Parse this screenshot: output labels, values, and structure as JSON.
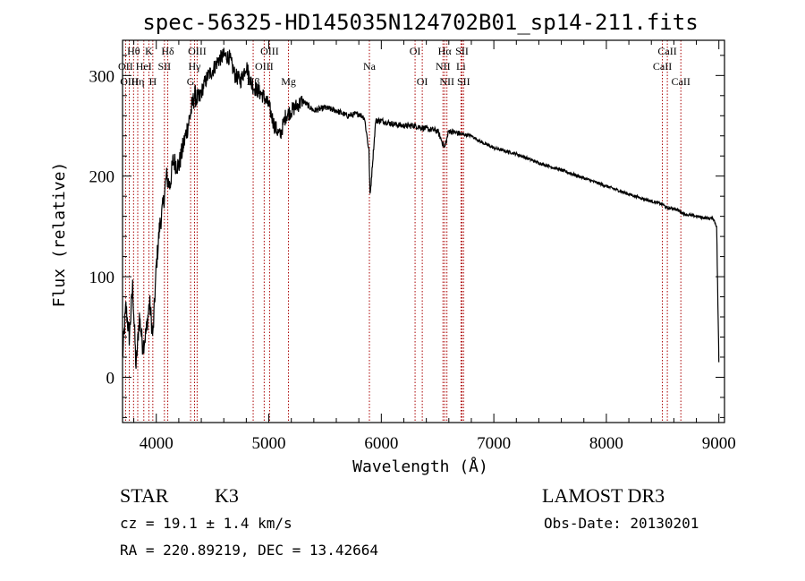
{
  "chart_data": {
    "type": "line",
    "title": "spec-56325-HD145035N124702B01_sp14-211.fits",
    "xlabel": "Wavelength (Å)",
    "ylabel": "Flux (relative)",
    "xlim": [
      3700,
      9050
    ],
    "ylim": [
      -45,
      335
    ],
    "xticks": [
      4000,
      5000,
      6000,
      7000,
      8000,
      9000
    ],
    "yticks": [
      0,
      100,
      200,
      300
    ],
    "series": [
      {
        "name": "spectrum",
        "color": "#000000",
        "x": [
          3700,
          3730,
          3760,
          3790,
          3820,
          3850,
          3880,
          3910,
          3940,
          3970,
          4000,
          4030,
          4060,
          4090,
          4120,
          4150,
          4200,
          4250,
          4300,
          4340,
          4380,
          4420,
          4460,
          4500,
          4550,
          4600,
          4650,
          4700,
          4750,
          4800,
          4850,
          4900,
          4950,
          5000,
          5050,
          5100,
          5150,
          5200,
          5300,
          5400,
          5500,
          5600,
          5700,
          5800,
          5850,
          5890,
          5900,
          5950,
          6000,
          6100,
          6200,
          6300,
          6400,
          6500,
          6563,
          6600,
          6700,
          6800,
          6900,
          7000,
          7200,
          7400,
          7600,
          7800,
          8000,
          8200,
          8400,
          8500,
          8542,
          8600,
          8700,
          8800,
          8900,
          8950,
          8980,
          9000
        ],
        "y": [
          20,
          70,
          40,
          90,
          10,
          60,
          30,
          45,
          75,
          40,
          110,
          150,
          170,
          200,
          190,
          215,
          210,
          235,
          260,
          280,
          275,
          290,
          300,
          305,
          315,
          320,
          318,
          300,
          295,
          310,
          290,
          285,
          280,
          270,
          250,
          240,
          260,
          265,
          275,
          265,
          268,
          265,
          260,
          262,
          258,
          225,
          180,
          255,
          255,
          252,
          250,
          250,
          247,
          245,
          228,
          245,
          242,
          240,
          233,
          228,
          222,
          213,
          206,
          198,
          190,
          182,
          175,
          172,
          168,
          168,
          162,
          160,
          158,
          158,
          150,
          15
        ]
      }
    ],
    "lines": [
      {
        "name": "Hθ",
        "wavelength": 3798,
        "row": 0
      },
      {
        "name": "OII",
        "wavelength": 3727,
        "row": 1
      },
      {
        "name": "OIII",
        "wavelength": 3760,
        "row": 2
      },
      {
        "name": "Hη",
        "wavelength": 3835,
        "row": 2
      },
      {
        "name": "HeI",
        "wavelength": 3889,
        "row": 1
      },
      {
        "name": "K",
        "wavelength": 3934,
        "row": 0
      },
      {
        "name": "SII",
        "wavelength": 4072,
        "row": 1
      },
      {
        "name": "H",
        "wavelength": 3969,
        "row": 2
      },
      {
        "name": "Hδ",
        "wavelength": 4102,
        "row": 0
      },
      {
        "name": "OIII",
        "wavelength": 4363,
        "row": 0
      },
      {
        "name": "Hγ",
        "wavelength": 4340,
        "row": 1
      },
      {
        "name": "G",
        "wavelength": 4305,
        "row": 2
      },
      {
        "name": "Hβ",
        "wavelength": 4861,
        "row": 2
      },
      {
        "name": "OIII",
        "wavelength": 5007,
        "row": 0
      },
      {
        "name": "OIII",
        "wavelength": 4959,
        "row": 1
      },
      {
        "name": "Mg",
        "wavelength": 5175,
        "row": 2
      },
      {
        "name": "Na",
        "wavelength": 5894,
        "row": 1
      },
      {
        "name": "OI",
        "wavelength": 6300,
        "row": 0
      },
      {
        "name": "OI",
        "wavelength": 6364,
        "row": 2
      },
      {
        "name": "Hα",
        "wavelength": 6563,
        "row": 0
      },
      {
        "name": "NII",
        "wavelength": 6548,
        "row": 1
      },
      {
        "name": "NII",
        "wavelength": 6583,
        "row": 2
      },
      {
        "name": "SII",
        "wavelength": 6717,
        "row": 0
      },
      {
        "name": "Li",
        "wavelength": 6708,
        "row": 1
      },
      {
        "name": "SII",
        "wavelength": 6731,
        "row": 2
      },
      {
        "name": "CaII",
        "wavelength": 8542,
        "row": 0
      },
      {
        "name": "CaII",
        "wavelength": 8498,
        "row": 1
      },
      {
        "name": "CaII",
        "wavelength": 8662,
        "row": 2
      }
    ],
    "line_color": "#aa0000"
  },
  "footer": {
    "object_class": "STAR",
    "subclass": "K3",
    "survey": "LAMOST DR3",
    "redshift": "cz = 19.1 ± 1.4 km/s",
    "obs_date": "Obs-Date: 20130201",
    "coords": "RA = 220.89219, DEC =  13.42664"
  }
}
